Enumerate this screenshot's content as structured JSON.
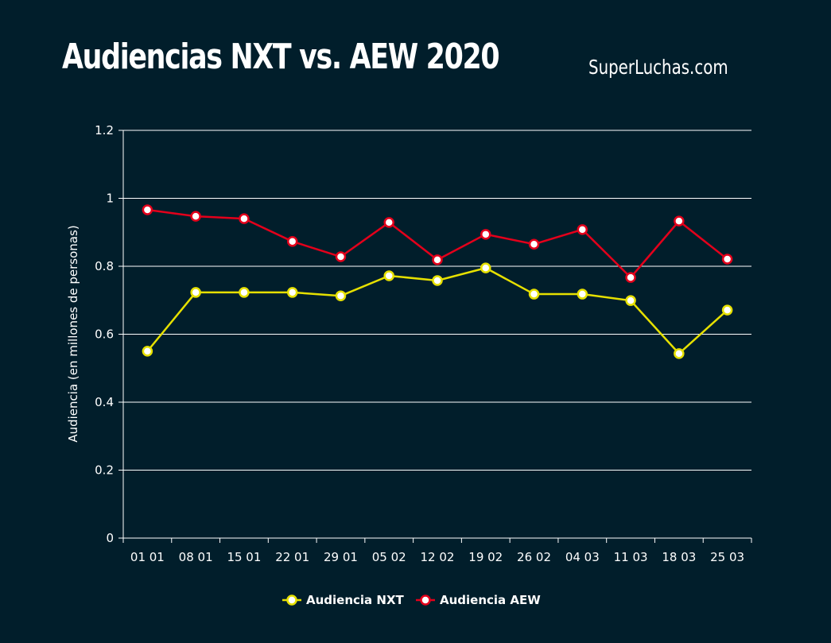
{
  "chart_data": {
    "type": "line",
    "title": "Audiencias NXT vs. AEW 2020",
    "source": "SuperLuchas.com",
    "xlabel": "",
    "ylabel": "Audiencia (en millones de personas)",
    "ylim": [
      0,
      1.2
    ],
    "yticks": [
      "0",
      "0.2",
      "0.4",
      "0.6",
      "0.8",
      "1",
      "1.2"
    ],
    "grid": true,
    "legend_position": "bottom",
    "categories": [
      "01 01",
      "08 01",
      "15 01",
      "22 01",
      "29 01",
      "05 02",
      "12 02",
      "19 02",
      "26 02",
      "04 03",
      "11 03",
      "18 03",
      "25 03"
    ],
    "series": [
      {
        "name": "Audiencia NXT",
        "color": "#e6e000",
        "values": [
          0.55,
          0.723,
          0.723,
          0.723,
          0.713,
          0.772,
          0.758,
          0.795,
          0.718,
          0.718,
          0.699,
          0.543,
          0.671
        ]
      },
      {
        "name": "Audiencia AEW",
        "color": "#e3001b",
        "values": [
          0.966,
          0.947,
          0.94,
          0.873,
          0.828,
          0.929,
          0.819,
          0.894,
          0.865,
          0.908,
          0.767,
          0.933,
          0.821
        ]
      }
    ]
  }
}
